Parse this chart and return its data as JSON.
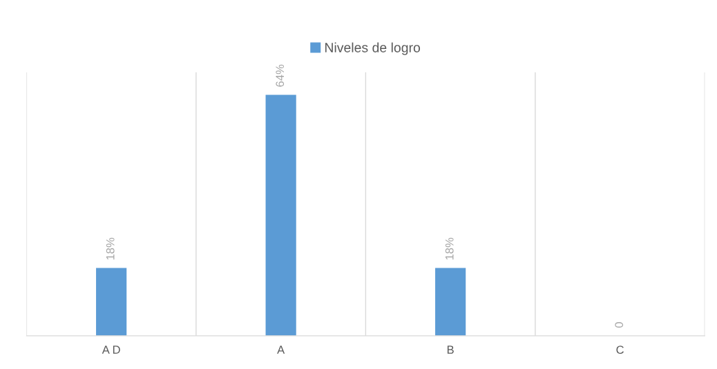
{
  "chart_data": {
    "type": "bar",
    "categories": [
      "A D",
      "A",
      "B",
      "C"
    ],
    "series": [
      {
        "name": "Niveles de logro",
        "color": "#5b9bd5",
        "values": [
          18,
          64,
          18,
          0
        ],
        "value_labels": [
          "18%",
          "64%",
          "18%",
          "0"
        ]
      }
    ],
    "ylim": [
      0,
      70
    ],
    "tick_labels": "x",
    "grid": "x",
    "legend": "top"
  }
}
